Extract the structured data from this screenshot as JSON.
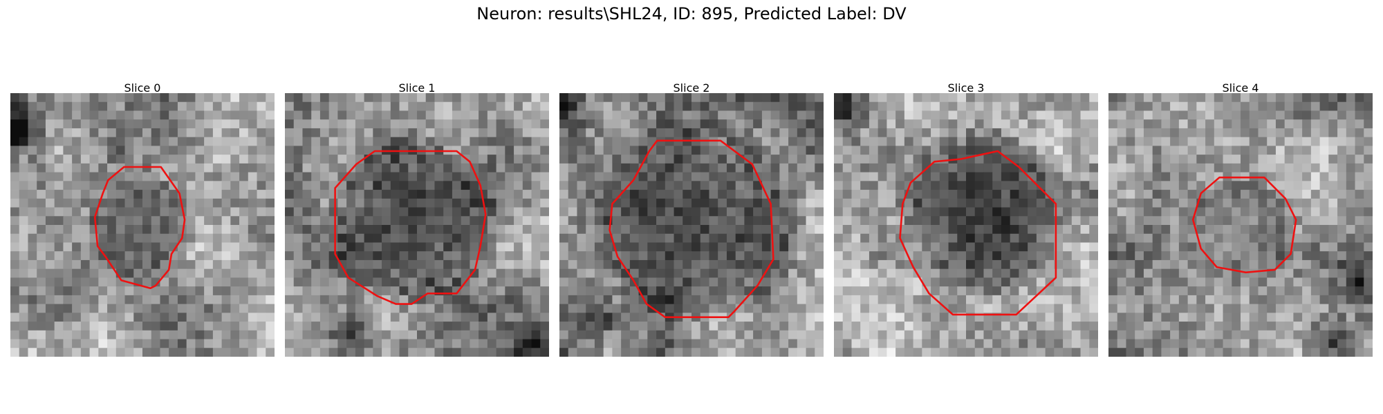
{
  "figure": {
    "title": "Neuron: results\\SHL24, ID: 895, Predicted Label: DV"
  },
  "panels": [
    {
      "title": "Slice 0"
    },
    {
      "title": "Slice 1"
    },
    {
      "title": "Slice 2"
    },
    {
      "title": "Slice 3"
    },
    {
      "title": "Slice 4"
    }
  ],
  "colors": {
    "contour": "#ee1111",
    "background": "#ffffff"
  }
}
